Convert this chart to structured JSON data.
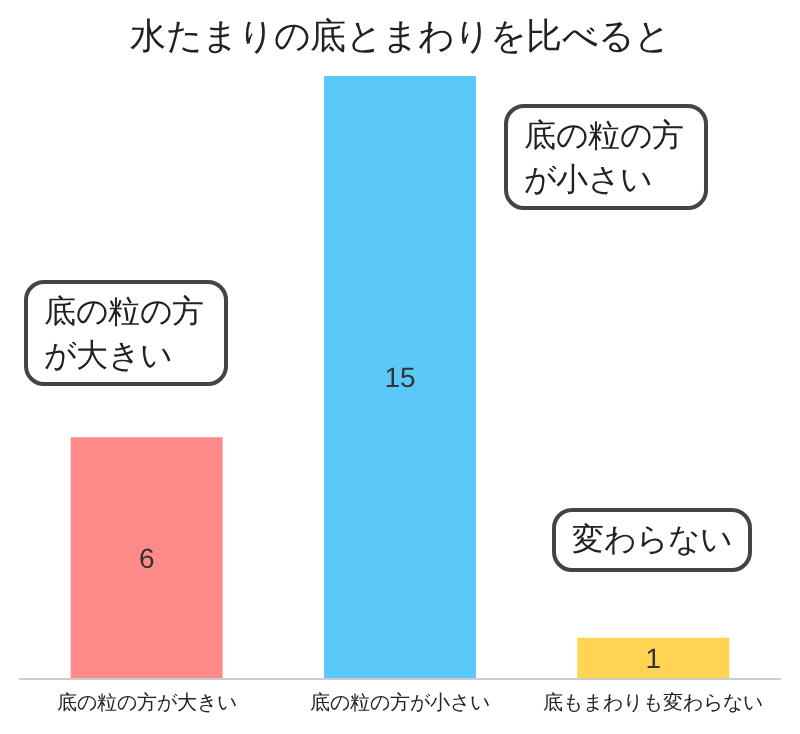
{
  "chart_data": {
    "type": "bar",
    "title": "水たまりの底とまわりを比べると",
    "categories": [
      "底の粒の方が大きい",
      "底の粒の方が小さい",
      "底もまわりも変わらない"
    ],
    "values": [
      6,
      15,
      1
    ],
    "colors": [
      "#ff8a8a",
      "#5bc8fa",
      "#ffd452"
    ],
    "data_labels": true,
    "annotations": [
      "底の粒の方が大きい",
      "底の粒の方が小さい",
      "変わらない"
    ]
  }
}
